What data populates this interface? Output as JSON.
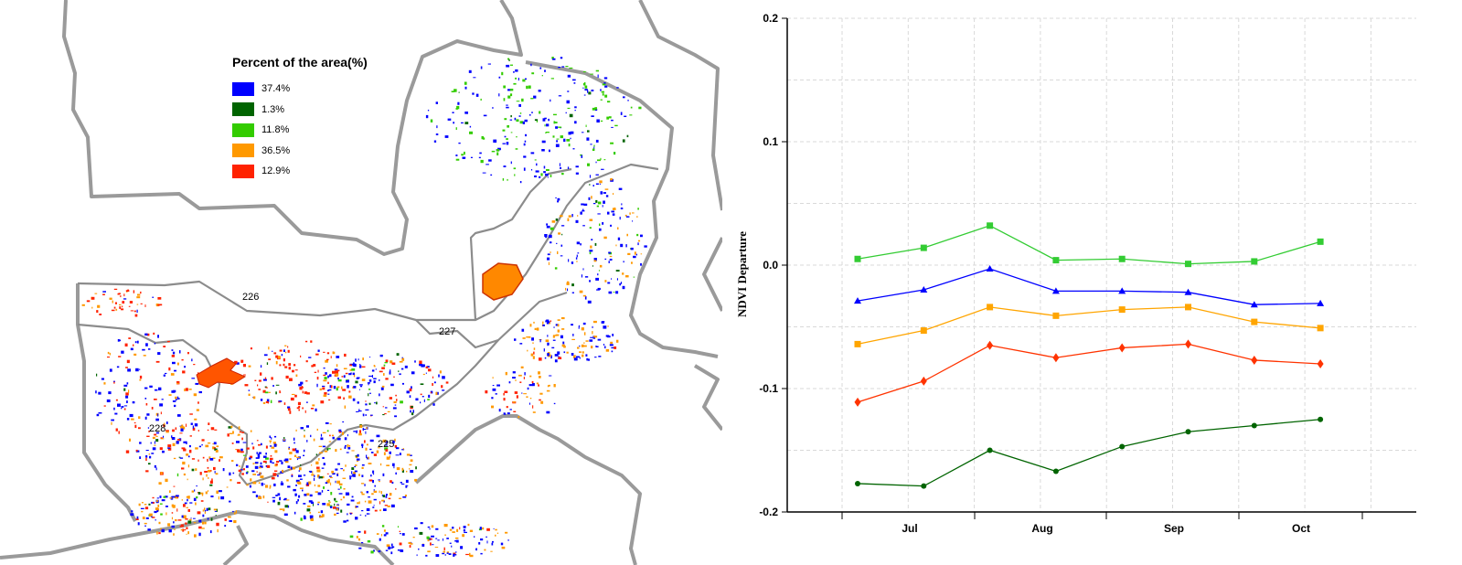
{
  "map": {
    "legend_title": "Percent of the area(%)",
    "legend": [
      {
        "label": "37.4%",
        "color": "#0000ff"
      },
      {
        "label": "1.3%",
        "color": "#006400"
      },
      {
        "label": "11.8%",
        "color": "#33cc00"
      },
      {
        "label": "36.5%",
        "color": "#ff9900"
      },
      {
        "label": "12.9%",
        "color": "#ff2200"
      }
    ],
    "regions": [
      "226",
      "227",
      "228",
      "225"
    ]
  },
  "chart_data": {
    "type": "line",
    "title": "",
    "xlabel": "",
    "ylabel": "NDVI Departure",
    "ylim": [
      -0.2,
      0.2
    ],
    "yticks": [
      "0.2",
      "0.1",
      "0.0",
      "-0.1",
      "-0.2"
    ],
    "month_labels": [
      "Jul",
      "Aug",
      "Sep",
      "Oct"
    ],
    "x": [
      1,
      2,
      3,
      4,
      5,
      6,
      7,
      8
    ],
    "grid": true,
    "series": [
      {
        "color": "#33cc33",
        "marker": "square",
        "values": [
          0.005,
          0.014,
          0.032,
          0.004,
          0.005,
          0.001,
          0.003,
          0.019
        ]
      },
      {
        "color": "#0000ff",
        "marker": "triangle",
        "values": [
          -0.029,
          -0.02,
          -0.003,
          -0.021,
          -0.021,
          -0.022,
          -0.032,
          -0.031
        ]
      },
      {
        "color": "#ffa500",
        "marker": "square",
        "values": [
          -0.064,
          -0.053,
          -0.034,
          -0.041,
          -0.036,
          -0.034,
          -0.046,
          -0.051
        ]
      },
      {
        "color": "#ff3300",
        "marker": "diamond",
        "values": [
          -0.111,
          -0.094,
          -0.065,
          -0.075,
          -0.067,
          -0.064,
          -0.077,
          -0.08
        ]
      },
      {
        "color": "#006400",
        "marker": "circle",
        "values": [
          -0.177,
          -0.179,
          -0.15,
          -0.167,
          -0.147,
          -0.135,
          -0.13,
          -0.125
        ]
      }
    ]
  }
}
